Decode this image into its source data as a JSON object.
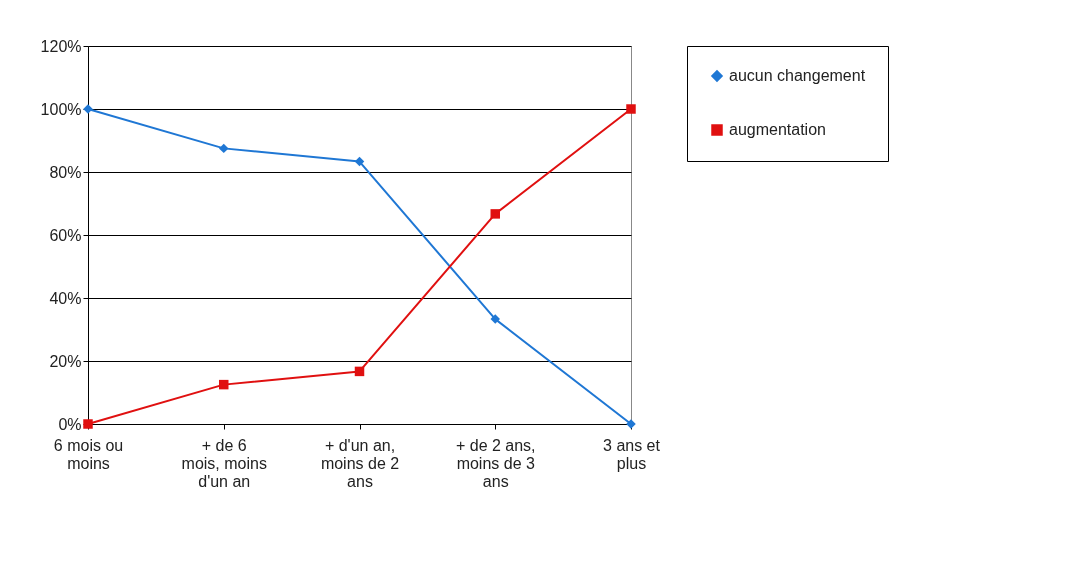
{
  "chart_data": {
    "type": "line",
    "categories": [
      "6 mois ou moins",
      "+ de 6 mois, moins d'un an",
      "+ d'un an, moins de 2 ans",
      "+ de 2 ans, moins de 3 ans",
      "3 ans et plus"
    ],
    "series": [
      {
        "name": "aucun changement",
        "color": "#1f77d4",
        "marker": "diamond",
        "values": [
          100,
          87.5,
          83.3,
          33.3,
          0
        ]
      },
      {
        "name": "augmentation",
        "color": "#e01010",
        "marker": "square",
        "values": [
          0,
          12.5,
          16.7,
          66.7,
          100
        ]
      }
    ],
    "ylim": [
      0,
      120
    ],
    "yticks": [
      {
        "value": 0,
        "label": "0%"
      },
      {
        "value": 20,
        "label": "20%"
      },
      {
        "value": 40,
        "label": "40%"
      },
      {
        "value": 60,
        "label": "60%"
      },
      {
        "value": 80,
        "label": "80%"
      },
      {
        "value": 100,
        "label": "100%"
      },
      {
        "value": 120,
        "label": "120%"
      }
    ],
    "grid": "y",
    "legend": "right",
    "line_style": "solid"
  }
}
